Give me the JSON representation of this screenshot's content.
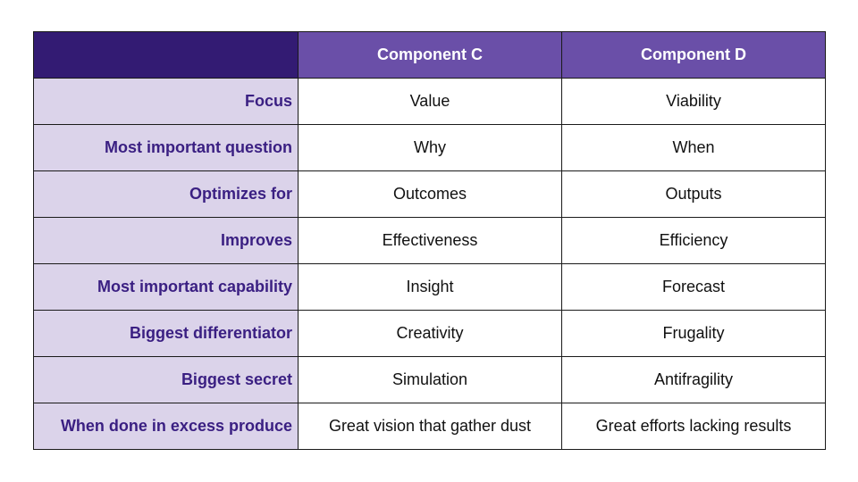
{
  "table": {
    "columns": [
      "",
      "Component C",
      "Component D"
    ],
    "rows": [
      {
        "label": "Focus",
        "c": "Value",
        "d": "Viability"
      },
      {
        "label": "Most important question",
        "c": "Why",
        "d": "When"
      },
      {
        "label": "Optimizes for",
        "c": "Outcomes",
        "d": "Outputs"
      },
      {
        "label": "Improves",
        "c": "Effectiveness",
        "d": "Efficiency"
      },
      {
        "label": "Most important capability",
        "c": "Insight",
        "d": "Forecast"
      },
      {
        "label": "Biggest differentiator",
        "c": "Creativity",
        "d": "Frugality"
      },
      {
        "label": "Biggest secret",
        "c": "Simulation",
        "d": "Antifragility"
      },
      {
        "label": "When done in excess produce",
        "c": "Great vision that gather dust",
        "d": "Great efforts lacking results"
      }
    ]
  },
  "colors": {
    "corner": "#331b73",
    "header": "#6a4fa8",
    "row_label_bg": "#dbd3ea",
    "row_label_text": "#3a1f82"
  }
}
